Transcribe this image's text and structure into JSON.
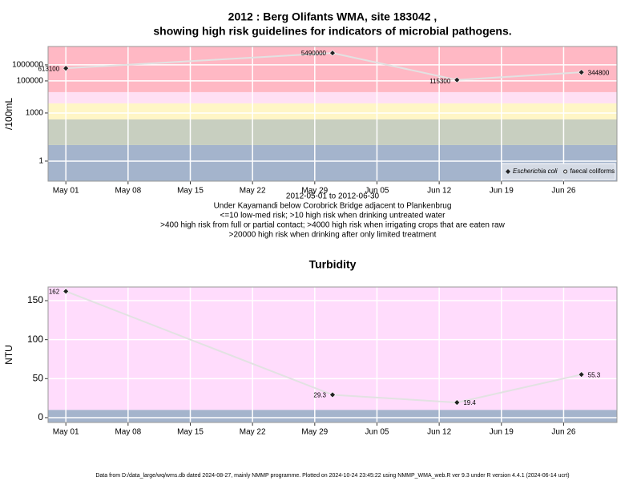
{
  "chart_data": [
    {
      "type": "line",
      "title": [
        "2012 : Berg Olifants WMA, site 183042 ,",
        "showing high risk guidelines for indicators of microbial pathogens."
      ],
      "caption": [
        "2012-05-01 to 2012-06-30",
        "Under Kayamandi below Corobrick Bridge adjacent to Plankenbrug",
        "<=10 low-med risk; >10 high risk when drinking untreated water",
        ">400 high risk from full or partial contact; >4000 high risk when irrigating crops that are eaten raw",
        ">20000 high risk when drinking after only limited treatment"
      ],
      "y_label": "/100mL",
      "log_y": true,
      "x": [
        "2012-05-01",
        "2012-05-31",
        "2012-06-14",
        "2012-06-28"
      ],
      "xlim": [
        "2012-04-29",
        "2012-07-02"
      ],
      "xticks": [
        {
          "value": "2012-05-01",
          "label": "May 01"
        },
        {
          "value": "2012-05-08",
          "label": "May 08"
        },
        {
          "value": "2012-05-15",
          "label": "May 15"
        },
        {
          "value": "2012-05-22",
          "label": "May 22"
        },
        {
          "value": "2012-05-29",
          "label": "May 29"
        },
        {
          "value": "2012-06-05",
          "label": "Jun 05"
        },
        {
          "value": "2012-06-12",
          "label": "Jun 12"
        },
        {
          "value": "2012-06-19",
          "label": "Jun 19"
        },
        {
          "value": "2012-06-26",
          "label": "Jun 26"
        }
      ],
      "ylim": [
        0.056,
        14000000
      ],
      "yticks": [
        1,
        1000,
        100000,
        1000000
      ],
      "grid": true,
      "bands": [
        {
          "to": 10,
          "color": "#a4b4cc"
        },
        {
          "from": 10,
          "to": 400,
          "color": "#c8cfc0"
        },
        {
          "from": 400,
          "to": 4000,
          "color": "#fff6c6"
        },
        {
          "from": 4000,
          "to": 20000,
          "color": "#ffe0f4"
        },
        {
          "from": 20000,
          "color": "#ffb8c4"
        }
      ],
      "line_color": "#e2e2e2",
      "legend": "bottom-right",
      "series": [
        {
          "name": "Escherichia coli",
          "marker": "diamond",
          "color": "#222222",
          "values": [
            613100,
            5490000,
            115300,
            344800
          ]
        },
        {
          "name": "faecal coliforms",
          "marker": "circle",
          "color": "#222222",
          "values": [
            null,
            null,
            null,
            null
          ]
        }
      ]
    },
    {
      "type": "line",
      "title": [
        "Turbidity"
      ],
      "y_label": "NTU",
      "log_y": false,
      "x": [
        "2012-05-01",
        "2012-05-31",
        "2012-06-14",
        "2012-06-28"
      ],
      "xlim": [
        "2012-04-29",
        "2012-07-02"
      ],
      "xticks": [
        {
          "value": "2012-05-01",
          "label": "May 01"
        },
        {
          "value": "2012-05-08",
          "label": "May 08"
        },
        {
          "value": "2012-05-15",
          "label": "May 15"
        },
        {
          "value": "2012-05-22",
          "label": "May 22"
        },
        {
          "value": "2012-05-29",
          "label": "May 29"
        },
        {
          "value": "2012-06-05",
          "label": "Jun 05"
        },
        {
          "value": "2012-06-12",
          "label": "Jun 12"
        },
        {
          "value": "2012-06-19",
          "label": "Jun 19"
        },
        {
          "value": "2012-06-26",
          "label": "Jun 26"
        }
      ],
      "ylim": [
        -6.2,
        167.5
      ],
      "yticks": [
        0,
        50,
        100,
        150
      ],
      "grid": true,
      "bands": [
        {
          "to": 10,
          "color": "#a4b4cc"
        },
        {
          "from": 10,
          "color": "#ffdcfc"
        }
      ],
      "line_color": "#e2e2e2",
      "series": [
        {
          "name": "Turbidity",
          "marker": "diamond",
          "color": "#222222",
          "values": [
            162,
            29.3,
            19.4,
            55.3
          ]
        }
      ]
    }
  ],
  "footer": "Data from D:/data_large/wq/wms.db dated 2024-08-27, mainly NMMP programme. Plotted on 2024-10-24 23:45:22 using NMMP_WMA_web.R ver 9.3 under R version 4.4.1 (2024-06-14 ucrt)"
}
